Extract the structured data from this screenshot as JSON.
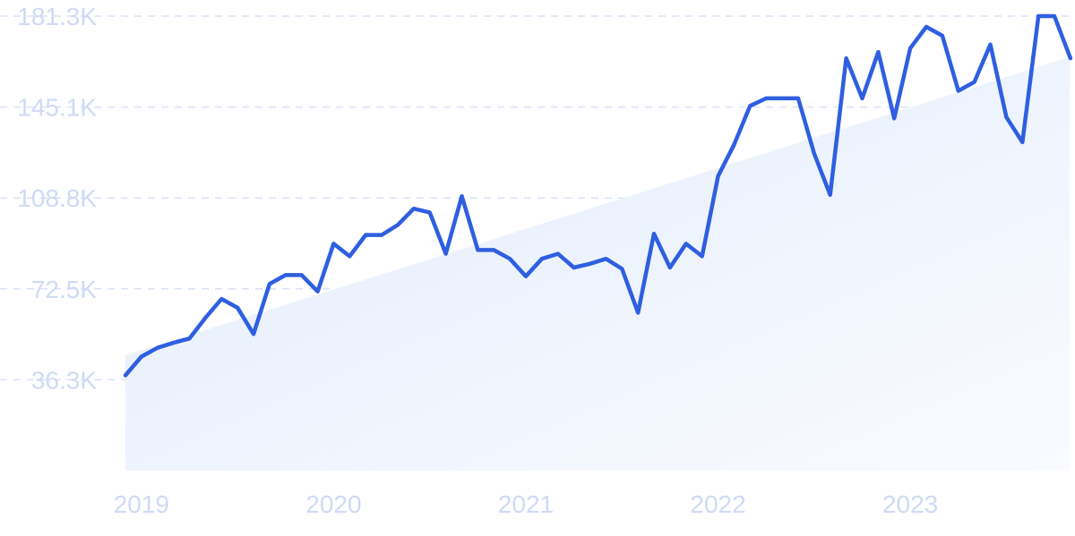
{
  "colors": {
    "line": "#2f5fe0",
    "trend_fill_start": "#e2ecfb",
    "trend_fill_end": "#f9fbff",
    "tick_text": "#cfdaf5",
    "grid": "#d9e2f7"
  },
  "chart_data": {
    "type": "line",
    "title": "",
    "xlabel": "",
    "ylabel": "",
    "y_ticks": [
      "36.3K",
      "72.5K",
      "108.8K",
      "145.1K",
      "181.3K"
    ],
    "x_ticks": [
      "2019",
      "2020",
      "2021",
      "2022",
      "2023"
    ],
    "ylim": [
      0,
      181300
    ],
    "grid": "horizontal dashed",
    "legend": "none",
    "series": [
      {
        "x": [
          "2019-01",
          "2019-02",
          "2019-03",
          "2019-04",
          "2019-05",
          "2019-06",
          "2019-07",
          "2019-08",
          "2019-09",
          "2019-10",
          "2019-11",
          "2019-12",
          "2020-01",
          "2020-02",
          "2020-03",
          "2020-04",
          "2020-05",
          "2020-06",
          "2020-07",
          "2020-08",
          "2020-09",
          "2020-10",
          "2020-11",
          "2020-12",
          "2021-01",
          "2021-02",
          "2021-03",
          "2021-04",
          "2021-05",
          "2021-06",
          "2021-07",
          "2021-08",
          "2021-09",
          "2021-10",
          "2021-11",
          "2021-12",
          "2022-01",
          "2022-02",
          "2022-03",
          "2022-04",
          "2022-05",
          "2022-06",
          "2022-07",
          "2022-08",
          "2022-09",
          "2022-10",
          "2022-11",
          "2022-12",
          "2023-01",
          "2023-02",
          "2023-03",
          "2023-04",
          "2023-05",
          "2023-06",
          "2023-07",
          "2023-08",
          "2023-09",
          "2023-10",
          "2023-11",
          "2023-12"
        ],
        "values": [
          38000,
          45500,
          49000,
          51000,
          52700,
          61000,
          68500,
          65000,
          54500,
          74500,
          78000,
          78000,
          71500,
          90500,
          85500,
          94000,
          94000,
          98000,
          104500,
          103000,
          86500,
          109500,
          88000,
          88000,
          84500,
          77500,
          84500,
          86500,
          81000,
          82500,
          84500,
          80500,
          63000,
          94500,
          81000,
          90500,
          85500,
          117500,
          130000,
          145500,
          148500,
          148500,
          148500,
          126500,
          110000,
          164500,
          148500,
          167000,
          140500,
          168500,
          177000,
          173500,
          151500,
          155000,
          170000,
          141000,
          131000,
          181300,
          181300,
          164500
        ]
      }
    ],
    "trend": {
      "start_value": 46000,
      "end_value": 165000
    }
  }
}
